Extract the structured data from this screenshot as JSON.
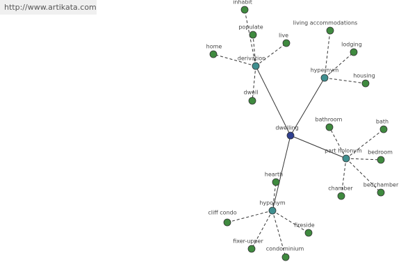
{
  "url": "http://www.artikata.com",
  "nodes": [
    {
      "label": "dwelling"
    },
    {
      "label": "derivation"
    },
    {
      "label": "hypernym"
    },
    {
      "label": "part holonym"
    },
    {
      "label": "hyponym"
    },
    {
      "label": "inhabit"
    },
    {
      "label": "populate"
    },
    {
      "label": "live"
    },
    {
      "label": "home"
    },
    {
      "label": "dwell"
    },
    {
      "label": "living accommodations"
    },
    {
      "label": "lodging"
    },
    {
      "label": "housing"
    },
    {
      "label": "bathroom"
    },
    {
      "label": "bath"
    },
    {
      "label": "bedroom"
    },
    {
      "label": "bedchamber"
    },
    {
      "label": "chamber"
    },
    {
      "label": "hearth"
    },
    {
      "label": "cliff condo"
    },
    {
      "label": "fireside"
    },
    {
      "label": "fixer-upper"
    },
    {
      "label": "condominium"
    }
  ]
}
